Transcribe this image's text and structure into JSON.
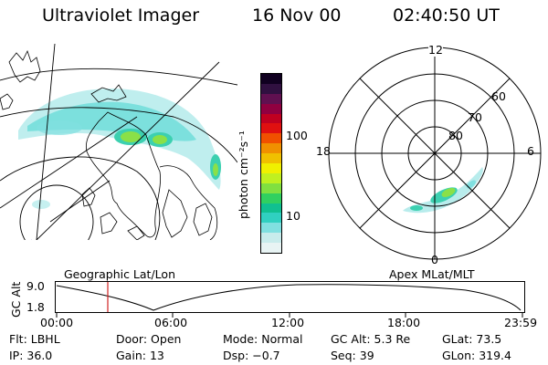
{
  "header": {
    "instrument": "Ultraviolet Imager",
    "date": "16 Nov 00",
    "time": "02:40:50 UT"
  },
  "left_panel": {
    "label": "Geographic Lat/Lon"
  },
  "colorbar": {
    "unit_label": "photon cm⁻²s⁻¹",
    "ticks": [
      "100",
      "10"
    ],
    "colors": [
      "#e8f4f4",
      "#c8ecec",
      "#80e0e0",
      "#30d0c0",
      "#10c090",
      "#30d060",
      "#80e040",
      "#c0f020",
      "#f0f000",
      "#f0c000",
      "#f09000",
      "#f05000",
      "#e01010",
      "#c00020",
      "#900040",
      "#601050",
      "#301040",
      "#100020"
    ]
  },
  "polar": {
    "label": "Apex MLat/MLT",
    "mlt_labels": {
      "top": "12",
      "bottom": "0",
      "left": "18",
      "right": "6"
    },
    "lat_labels": [
      "60",
      "70",
      "80"
    ]
  },
  "altitude_plot": {
    "ylabel": "GC Alt",
    "yticks": [
      "9.0",
      "1.8"
    ],
    "xticks": [
      "00:00",
      "06:00",
      "12:00",
      "18:00",
      "23:59"
    ],
    "marker_time": "02:40",
    "marker_color": "#d02020"
  },
  "info": {
    "row1": [
      {
        "key": "Flt:",
        "value": "LBHL"
      },
      {
        "key": "Door:",
        "value": "Open"
      },
      {
        "key": "Mode:",
        "value": "Normal"
      },
      {
        "key": "GC Alt:",
        "value": "5.3 Re"
      },
      {
        "key": "GLat:",
        "value": "73.5"
      }
    ],
    "row2": [
      {
        "key": "IP:",
        "value": "36.0"
      },
      {
        "key": "Gain:",
        "value": "13"
      },
      {
        "key": "Dsp:",
        "value": "−0.7"
      },
      {
        "key": "Seq:",
        "value": "39"
      },
      {
        "key": "GLon:",
        "value": "319.4"
      }
    ]
  }
}
